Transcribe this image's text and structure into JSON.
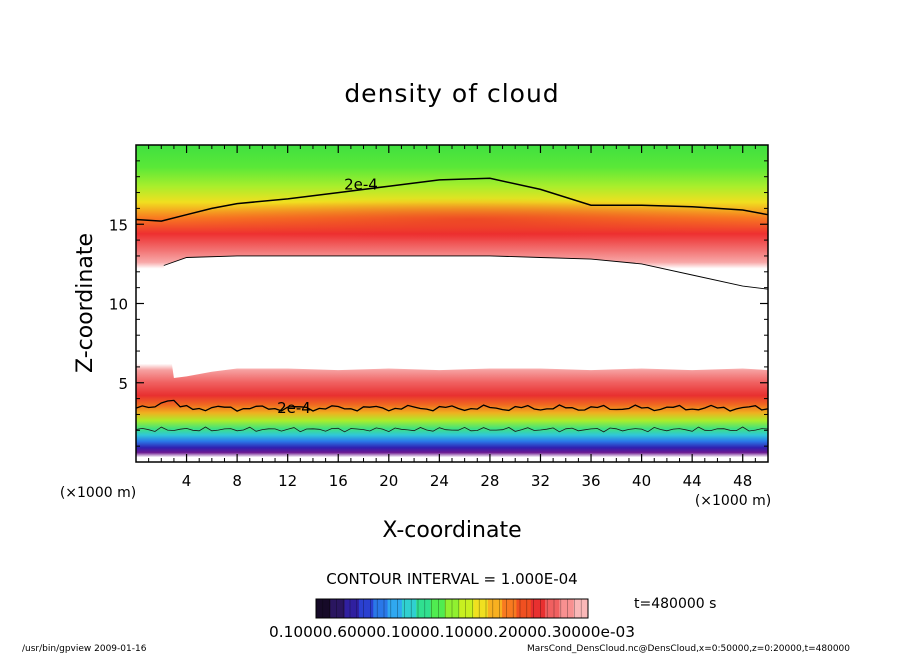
{
  "chart_data": {
    "type": "heatmap",
    "title": "density of cloud",
    "xlabel": "X-coordinate",
    "ylabel": "Z-coordinate",
    "x_unit": "(×1000 m)",
    "y_unit": "(×1000 m)",
    "xlim": [
      0,
      50
    ],
    "ylim": [
      0,
      20
    ],
    "xticks": [
      4,
      8,
      12,
      16,
      20,
      24,
      28,
      32,
      36,
      40,
      44,
      48
    ],
    "yticks": [
      5,
      10,
      15
    ],
    "contour_interval": "CONTOUR INTERVAL = 1.000E-04",
    "contour_labels": [
      {
        "text": "2e-4",
        "x": 17.8,
        "z": 17.5
      },
      {
        "text": "2e-4",
        "x": 12.5,
        "z": 3.4
      }
    ],
    "contour_upper": {
      "x": [
        0,
        2,
        4,
        6,
        8,
        12,
        16,
        20,
        24,
        28,
        32,
        36,
        40,
        44,
        48,
        50
      ],
      "z": [
        15.3,
        15.2,
        15.6,
        16.0,
        16.3,
        16.6,
        17.0,
        17.4,
        17.8,
        17.9,
        17.2,
        16.2,
        16.2,
        16.1,
        15.9,
        15.6
      ]
    },
    "clear_region_top": {
      "x": [
        2.2,
        4,
        8,
        12,
        16,
        20,
        24,
        28,
        32,
        36,
        40,
        44,
        48,
        50
      ],
      "z": [
        12.4,
        12.9,
        13.0,
        13.0,
        13.0,
        13.0,
        13.0,
        13.0,
        12.9,
        12.8,
        12.5,
        11.8,
        11.1,
        10.9
      ]
    },
    "contour_lower_z": 3.4,
    "colorbar": {
      "tick_text": "0.10000.60000.10000.10000.20000.30000e-03",
      "colors": [
        "#160a28",
        "#2a1660",
        "#3020a0",
        "#2a40d0",
        "#2a78e8",
        "#30a8f0",
        "#30d0d0",
        "#30e090",
        "#50ec50",
        "#90f030",
        "#c8f020",
        "#f0e020",
        "#f8b020",
        "#f87a20",
        "#f05020",
        "#e83030",
        "#f06060",
        "#f89090",
        "#fab8b8"
      ]
    },
    "time_label": "t=480000 s"
  },
  "footer": {
    "left": "/usr/bin/gpview   2009-01-16",
    "right": "MarsCond_DensCloud.nc@DensCloud,x=0:50000,z=0:20000,t=480000"
  }
}
